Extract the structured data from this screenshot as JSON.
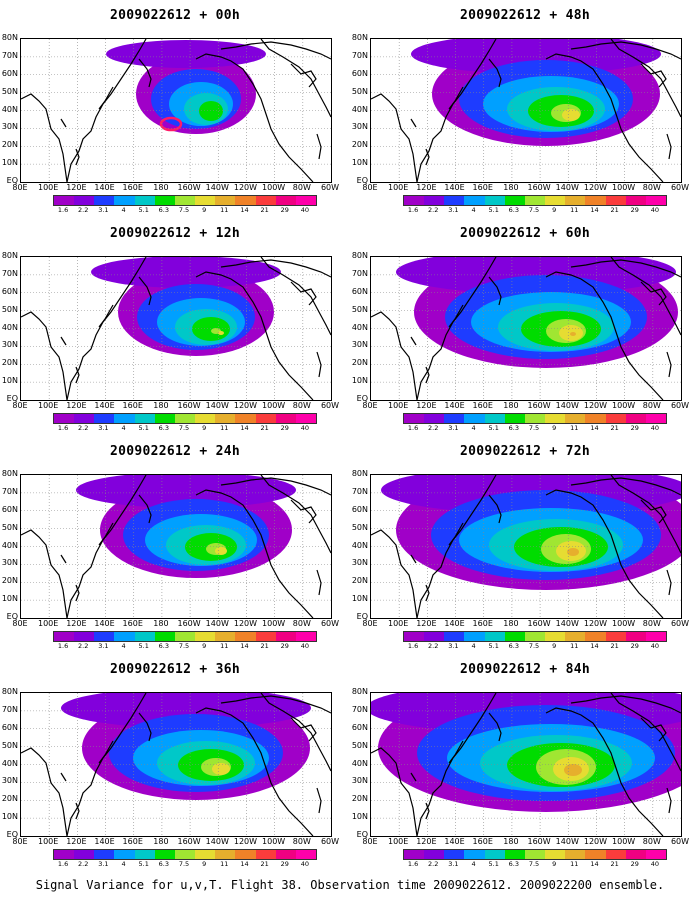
{
  "caption": "Signal Variance for u,v,T. Flight 38. Observation time 2009022612. 2009022200 ensemble.",
  "colorbar": {
    "labels": [
      "1.6",
      "2.2",
      "3.1",
      "4",
      "5.1",
      "6.3",
      "7.5",
      "9",
      "11",
      "14",
      "21",
      "29",
      "40"
    ],
    "colors": [
      "#a000c8",
      "#8200dc",
      "#1e3cff",
      "#00a0ff",
      "#00c8c8",
      "#00dc00",
      "#a0e632",
      "#e6dc32",
      "#e6af2d",
      "#f08228",
      "#fa3c3c",
      "#f00082",
      "#ff00aa"
    ]
  },
  "lat_labels": [
    "80N",
    "70N",
    "60N",
    "50N",
    "40N",
    "30N",
    "20N",
    "10N",
    "EQ"
  ],
  "lon_labels": [
    "80E",
    "100E",
    "120E",
    "140E",
    "160E",
    "180",
    "160W",
    "140W",
    "120W",
    "100W",
    "80W",
    "60W"
  ],
  "panels": [
    {
      "title": "2009022612 + 00h"
    },
    {
      "title": "2009022612 + 48h"
    },
    {
      "title": "2009022612 + 12h"
    },
    {
      "title": "2009022612 + 60h"
    },
    {
      "title": "2009022612 + 24h"
    },
    {
      "title": "2009022612 + 72h"
    },
    {
      "title": "2009022612 + 36h"
    },
    {
      "title": "2009022612 + 84h"
    }
  ]
}
